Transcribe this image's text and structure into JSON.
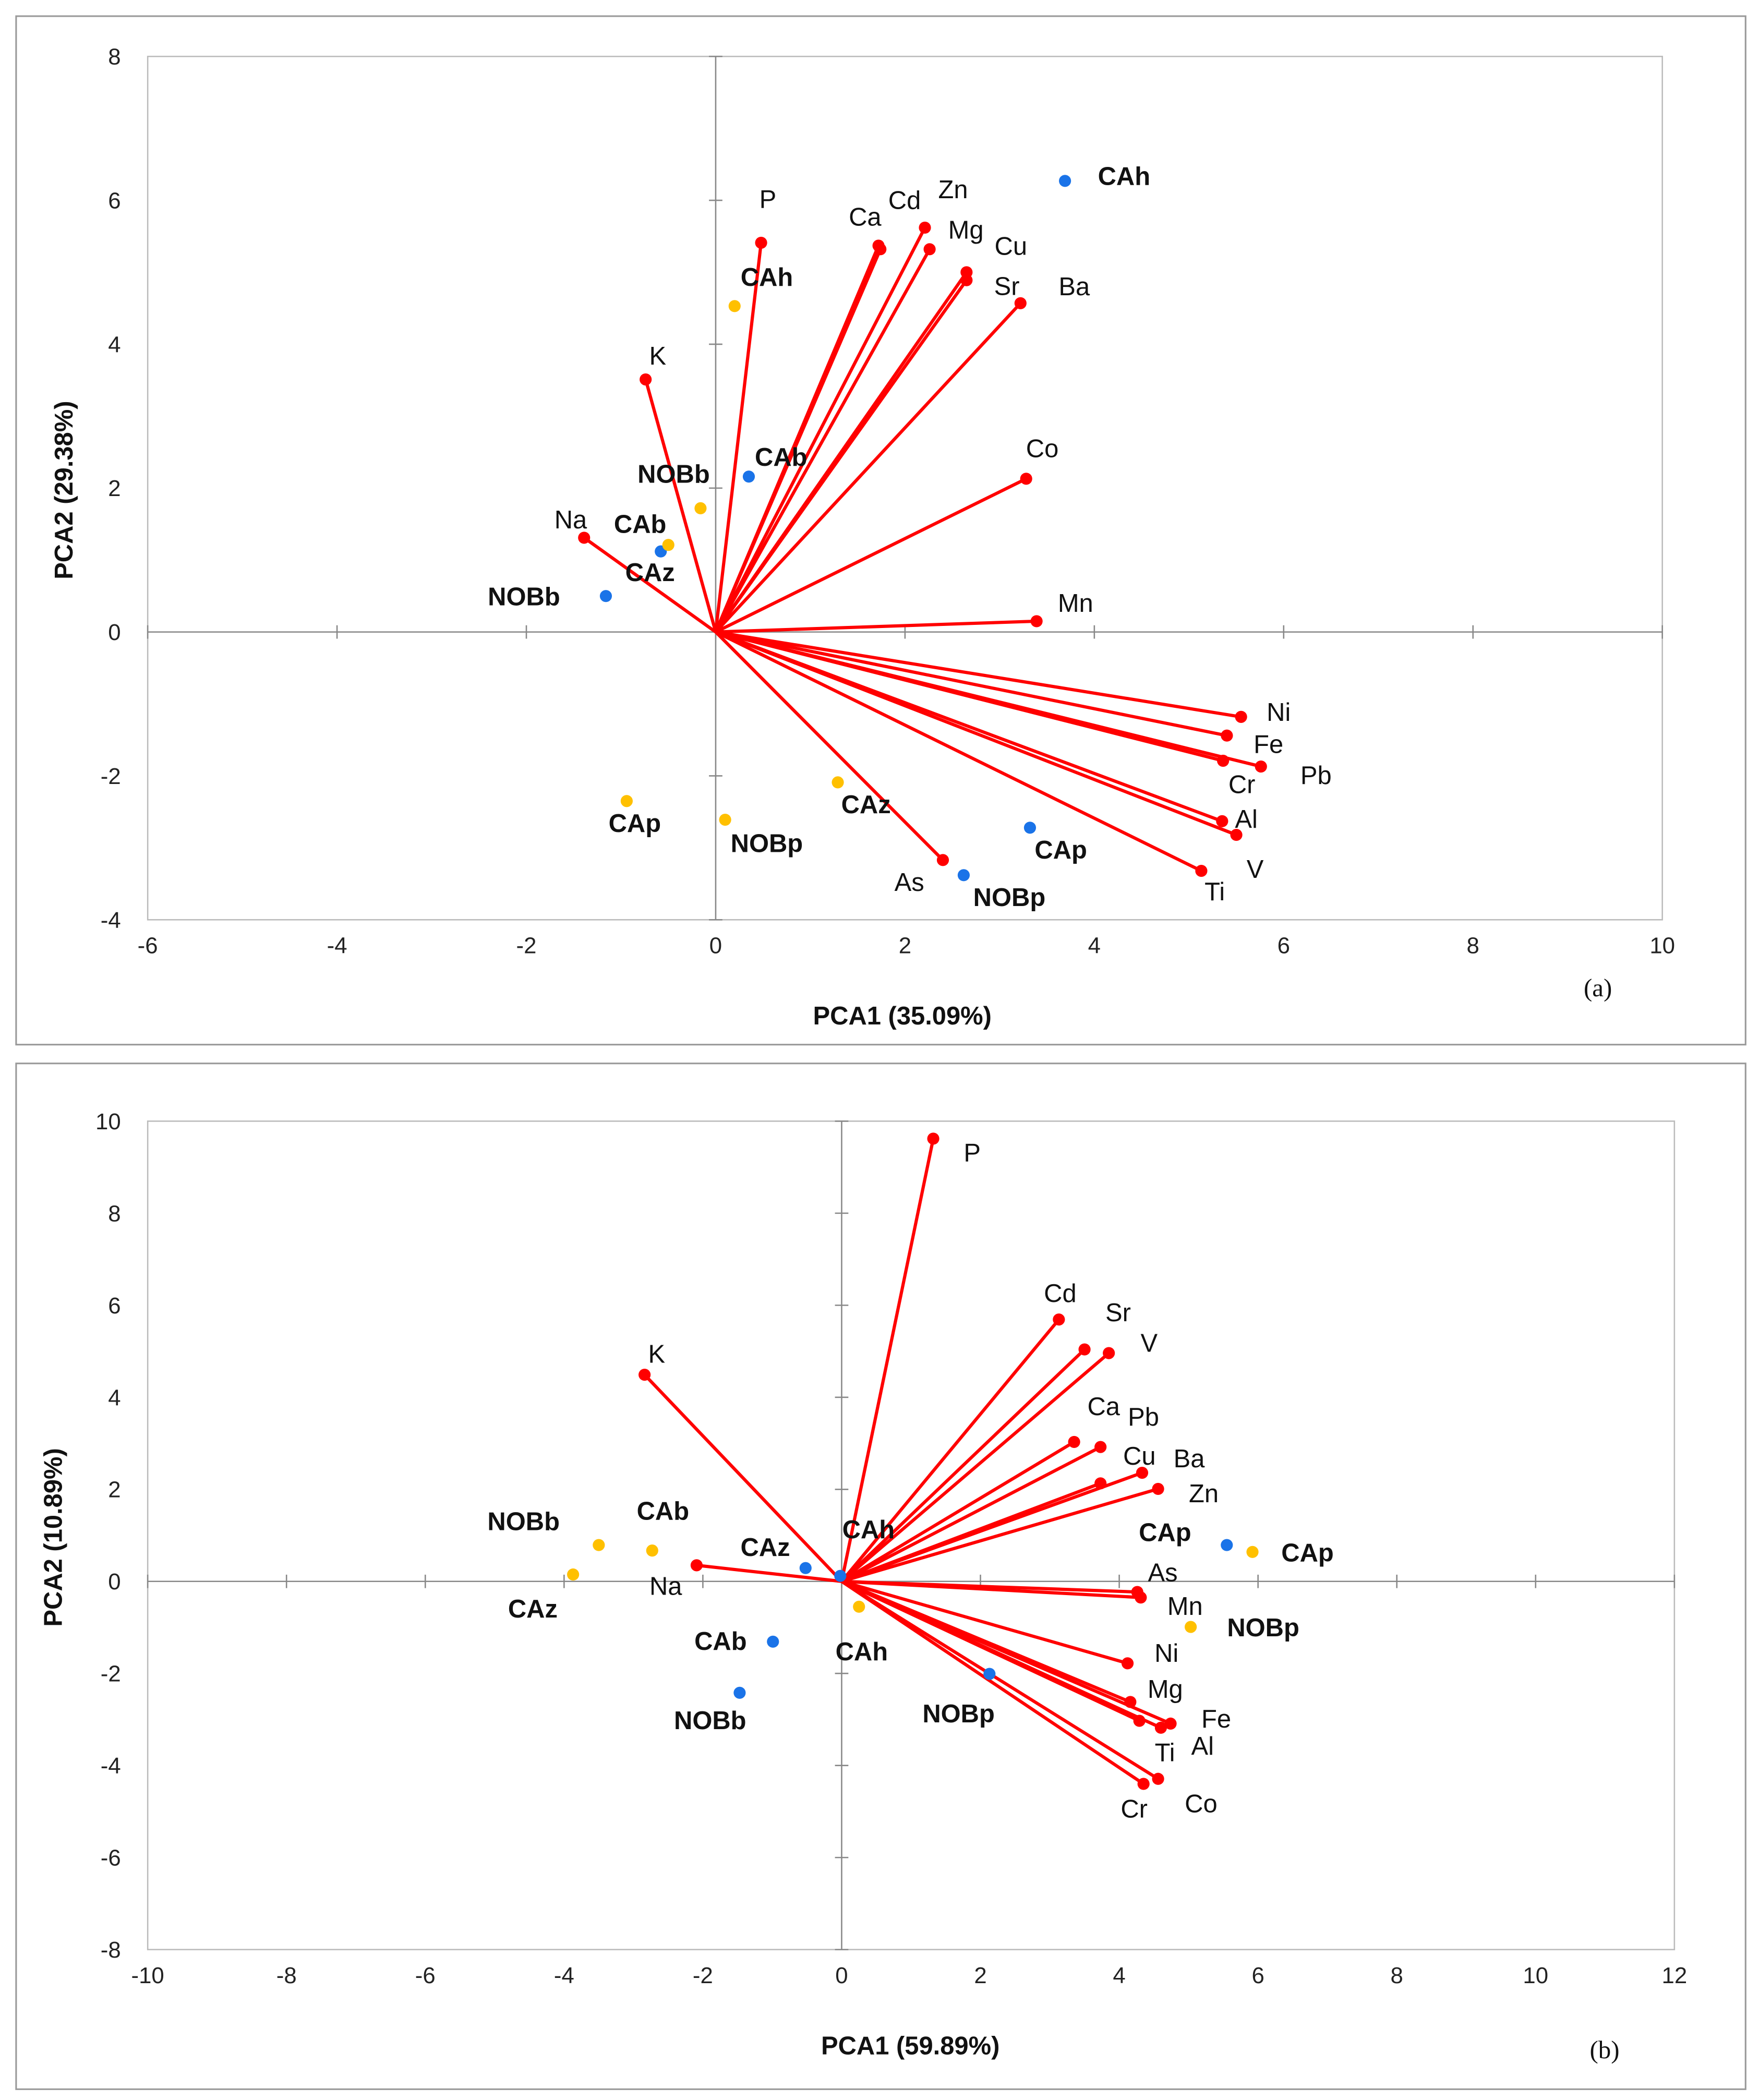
{
  "chart_data": [
    {
      "type": "scatter",
      "panel_label": "(a)",
      "xlabel": "PCA1 (35.09%)",
      "ylabel": "PCA2 (29.38%)",
      "xlim": [
        -6,
        10
      ],
      "ylim": [
        -4,
        8
      ],
      "xticks": [
        -6,
        -4,
        -2,
        0,
        2,
        4,
        6,
        8,
        10
      ],
      "yticks": [
        -4,
        -2,
        0,
        2,
        4,
        6,
        8
      ],
      "vector_color": "#ff0000",
      "vectors": [
        {
          "name": "P",
          "x": 0.48,
          "y": 5.41
        },
        {
          "name": "Ca",
          "x": 1.72,
          "y": 5.37
        },
        {
          "name": "Cd",
          "x": 1.74,
          "y": 5.32
        },
        {
          "name": "Zn",
          "x": 2.21,
          "y": 5.62
        },
        {
          "name": "Mg",
          "x": 2.26,
          "y": 5.32
        },
        {
          "name": "Cu",
          "x": 2.65,
          "y": 5.0
        },
        {
          "name": "Sr",
          "x": 2.65,
          "y": 4.89
        },
        {
          "name": "Ba",
          "x": 3.22,
          "y": 4.57
        },
        {
          "name": "K",
          "x": -0.74,
          "y": 3.51
        },
        {
          "name": "Co",
          "x": 3.28,
          "y": 2.13
        },
        {
          "name": "Na",
          "x": -1.39,
          "y": 1.31
        },
        {
          "name": "Mn",
          "x": 3.39,
          "y": 0.15
        },
        {
          "name": "Ni",
          "x": 5.55,
          "y": -1.18
        },
        {
          "name": "Fe",
          "x": 5.4,
          "y": -1.44
        },
        {
          "name": "Pb",
          "x": 5.76,
          "y": -1.87
        },
        {
          "name": "Cr",
          "x": 5.36,
          "y": -1.79
        },
        {
          "name": "Al",
          "x": 5.35,
          "y": -2.63
        },
        {
          "name": "V",
          "x": 5.5,
          "y": -2.82
        },
        {
          "name": "Ti",
          "x": 5.13,
          "y": -3.32
        },
        {
          "name": "As",
          "x": 2.4,
          "y": -3.17
        }
      ],
      "series": [
        {
          "name": "blue",
          "color": "#1a73e8",
          "points": [
            {
              "name": "CAh",
              "x": 3.69,
              "y": 6.27
            },
            {
              "name": "CAb",
              "x": 0.35,
              "y": 2.16
            },
            {
              "name": "CAz",
              "x": -0.58,
              "y": 1.12
            },
            {
              "name": "NOBb",
              "x": -1.16,
              "y": 0.5
            },
            {
              "name": "CAp",
              "x": 3.32,
              "y": -2.72
            },
            {
              "name": "NOBp",
              "x": 2.62,
              "y": -3.38
            }
          ]
        },
        {
          "name": "yellow",
          "color": "#ffc000",
          "points": [
            {
              "name": "CAh",
              "x": 0.2,
              "y": 4.53
            },
            {
              "name": "NOBb",
              "x": -0.16,
              "y": 1.72
            },
            {
              "name": "CAb",
              "x": -0.5,
              "y": 1.21
            },
            {
              "name": "CAp",
              "x": -0.94,
              "y": -2.35
            },
            {
              "name": "NOBp",
              "x": 0.1,
              "y": -2.61
            },
            {
              "name": "CAz",
              "x": 1.29,
              "y": -2.09
            }
          ]
        }
      ]
    },
    {
      "type": "scatter",
      "panel_label": "(b)",
      "xlabel": "PCA1 (59.89%)",
      "ylabel": "PCA2 (10.89%)",
      "xlim": [
        -10,
        12
      ],
      "ylim": [
        -8,
        10
      ],
      "xticks": [
        -10,
        -8,
        -6,
        -4,
        -2,
        0,
        2,
        4,
        6,
        8,
        10,
        12
      ],
      "yticks": [
        -8,
        -6,
        -4,
        -2,
        0,
        2,
        4,
        6,
        8,
        10
      ],
      "vector_color": "#ff0000",
      "vectors": [
        {
          "name": "P",
          "x": 1.32,
          "y": 9.62
        },
        {
          "name": "Cd",
          "x": 3.13,
          "y": 5.69
        },
        {
          "name": "Sr",
          "x": 3.5,
          "y": 5.04
        },
        {
          "name": "V",
          "x": 3.85,
          "y": 4.96
        },
        {
          "name": "K",
          "x": -2.84,
          "y": 4.49
        },
        {
          "name": "Ca",
          "x": 3.35,
          "y": 3.03
        },
        {
          "name": "Pb",
          "x": 3.73,
          "y": 2.92
        },
        {
          "name": "Cu",
          "x": 3.73,
          "y": 2.13
        },
        {
          "name": "Ba",
          "x": 4.33,
          "y": 2.36
        },
        {
          "name": "Zn",
          "x": 4.56,
          "y": 2.01
        },
        {
          "name": "Na",
          "x": -2.09,
          "y": 0.35
        },
        {
          "name": "As",
          "x": 4.26,
          "y": -0.23
        },
        {
          "name": "Mn",
          "x": 4.31,
          "y": -0.35
        },
        {
          "name": "Ni",
          "x": 4.12,
          "y": -1.78
        },
        {
          "name": "Mg",
          "x": 4.16,
          "y": -2.62
        },
        {
          "name": "Ti",
          "x": 4.29,
          "y": -3.03
        },
        {
          "name": "Fe",
          "x": 4.74,
          "y": -3.09
        },
        {
          "name": "Al",
          "x": 4.6,
          "y": -3.18
        },
        {
          "name": "Co",
          "x": 4.56,
          "y": -4.29
        },
        {
          "name": "Cr",
          "x": 4.35,
          "y": -4.4
        }
      ],
      "series": [
        {
          "name": "blue",
          "color": "#1a73e8",
          "points": [
            {
              "name": "CAz",
              "x": -0.52,
              "y": 0.29
            },
            {
              "name": "CAh",
              "x": -0.02,
              "y": 0.12
            },
            {
              "name": "CAp",
              "x": 5.55,
              "y": 0.79
            },
            {
              "name": "CAb",
              "x": -0.99,
              "y": -1.31
            },
            {
              "name": "NOBb",
              "x": -1.47,
              "y": -2.42
            },
            {
              "name": "NOBp",
              "x": 2.13,
              "y": -2.01
            }
          ]
        },
        {
          "name": "yellow",
          "color": "#ffc000",
          "points": [
            {
              "name": "NOBb",
              "x": -3.5,
              "y": 0.79
            },
            {
              "name": "CAb",
              "x": -2.73,
              "y": 0.67
            },
            {
              "name": "CAz",
              "x": -3.87,
              "y": 0.15
            },
            {
              "name": "CAp",
              "x": 5.92,
              "y": 0.64
            },
            {
              "name": "NOBp",
              "x": 5.03,
              "y": -0.99
            },
            {
              "name": "CAh",
              "x": 0.25,
              "y": -0.55
            }
          ]
        }
      ]
    }
  ]
}
